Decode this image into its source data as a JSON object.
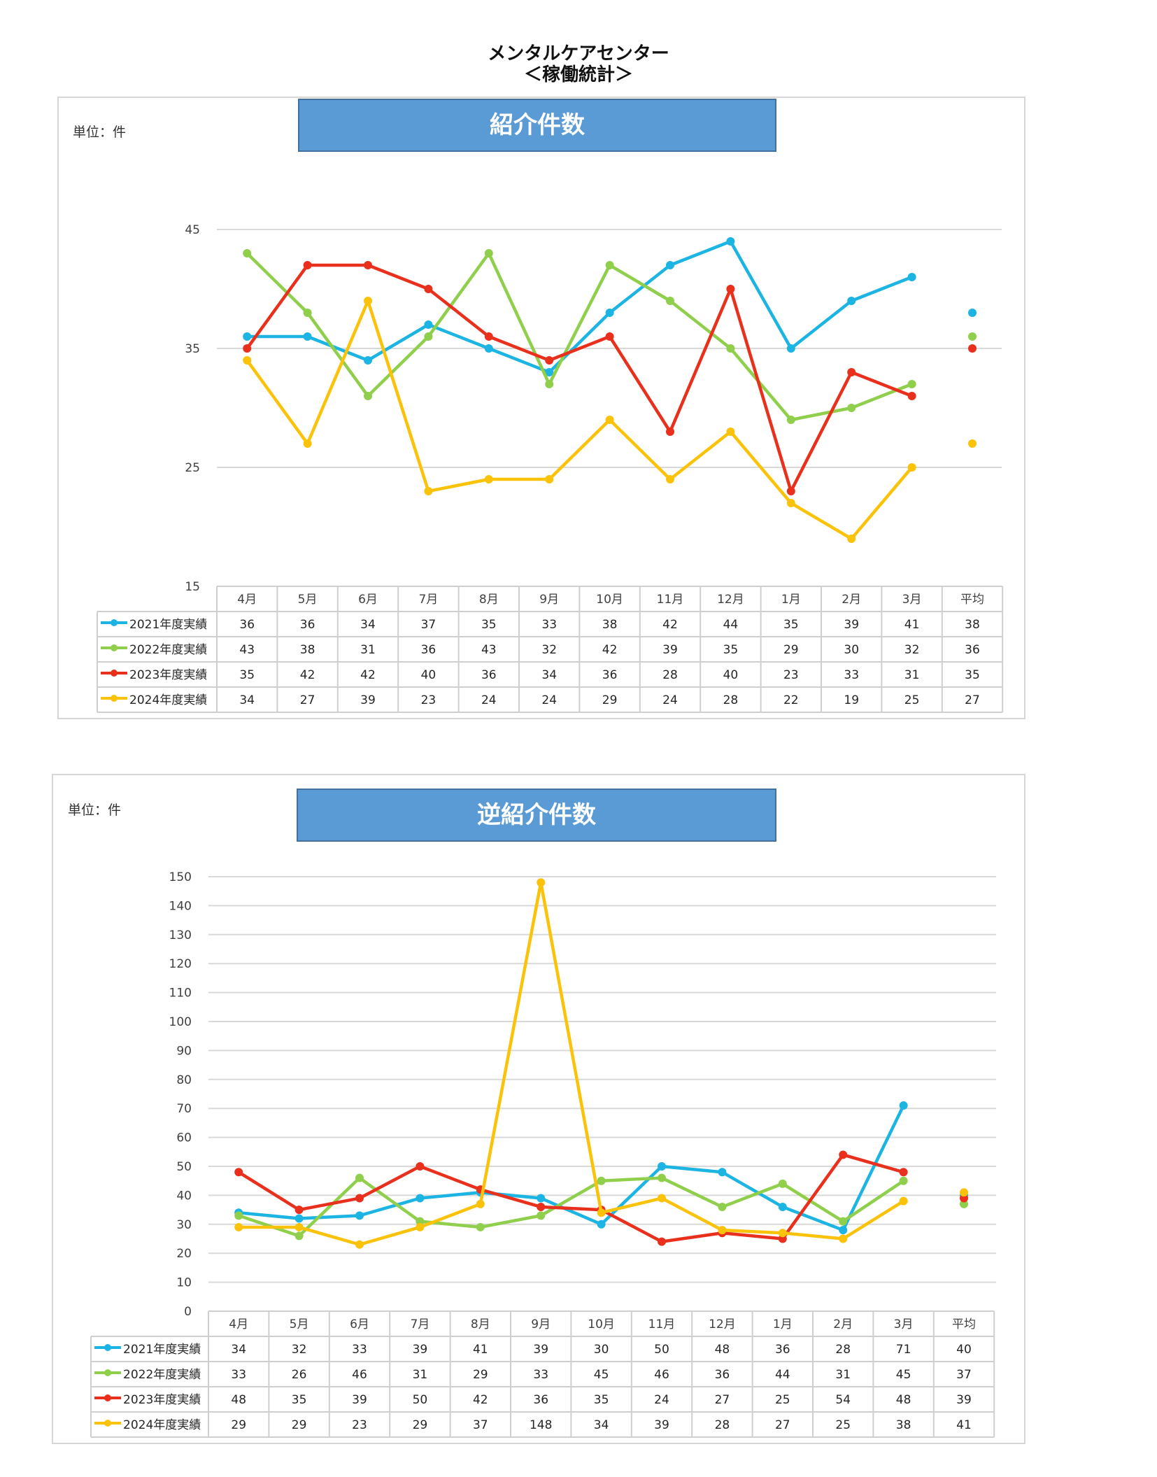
{
  "document": {
    "title_line1": "メンタルケアセンター",
    "title_line2": "＜稼働統計＞"
  },
  "colors": {
    "series": [
      "#1cb4e2",
      "#8fcf4b",
      "#e8301c",
      "#fbc20a"
    ],
    "banner": "#5b9bd5",
    "grid": "#d9d9d9"
  },
  "chart_data": [
    {
      "type": "line",
      "title": "紹介件数",
      "unit_label": "単位：件",
      "categories": [
        "4月",
        "5月",
        "6月",
        "7月",
        "8月",
        "9月",
        "10月",
        "11月",
        "12月",
        "1月",
        "2月",
        "3月"
      ],
      "average_label": "平均",
      "ylim": [
        15,
        45
      ],
      "yticks": [
        15,
        25,
        35,
        45
      ],
      "grid": true,
      "legend": "data-table-left",
      "series": [
        {
          "name": "2021年度実績",
          "values": [
            36,
            36,
            34,
            37,
            35,
            33,
            38,
            42,
            44,
            35,
            39,
            41
          ],
          "average": 38
        },
        {
          "name": "2022年度実績",
          "values": [
            43,
            38,
            31,
            36,
            43,
            32,
            42,
            39,
            35,
            29,
            30,
            32
          ],
          "average": 36
        },
        {
          "name": "2023年度実績",
          "values": [
            35,
            42,
            42,
            40,
            36,
            34,
            36,
            28,
            40,
            23,
            33,
            31
          ],
          "average": 35
        },
        {
          "name": "2024年度実績",
          "values": [
            34,
            27,
            39,
            23,
            24,
            24,
            29,
            24,
            28,
            22,
            19,
            25
          ],
          "average": 27
        }
      ]
    },
    {
      "type": "line",
      "title": "逆紹介件数",
      "unit_label": "単位：件",
      "categories": [
        "4月",
        "5月",
        "6月",
        "7月",
        "8月",
        "9月",
        "10月",
        "11月",
        "12月",
        "1月",
        "2月",
        "3月"
      ],
      "average_label": "平均",
      "ylim": [
        0,
        150
      ],
      "yticks": [
        0,
        10,
        20,
        30,
        40,
        50,
        60,
        70,
        80,
        90,
        100,
        110,
        120,
        130,
        140,
        150
      ],
      "grid": true,
      "legend": "data-table-left",
      "series": [
        {
          "name": "2021年度実績",
          "values": [
            34,
            32,
            33,
            39,
            41,
            39,
            30,
            50,
            48,
            36,
            28,
            71
          ],
          "average": 40
        },
        {
          "name": "2022年度実績",
          "values": [
            33,
            26,
            46,
            31,
            29,
            33,
            45,
            46,
            36,
            44,
            31,
            45
          ],
          "average": 37
        },
        {
          "name": "2023年度実績",
          "values": [
            48,
            35,
            39,
            50,
            42,
            36,
            35,
            24,
            27,
            25,
            54,
            48
          ],
          "average": 39
        },
        {
          "name": "2024年度実績",
          "values": [
            29,
            29,
            23,
            29,
            37,
            148,
            34,
            39,
            28,
            27,
            25,
            38
          ],
          "average": 41
        }
      ]
    }
  ]
}
